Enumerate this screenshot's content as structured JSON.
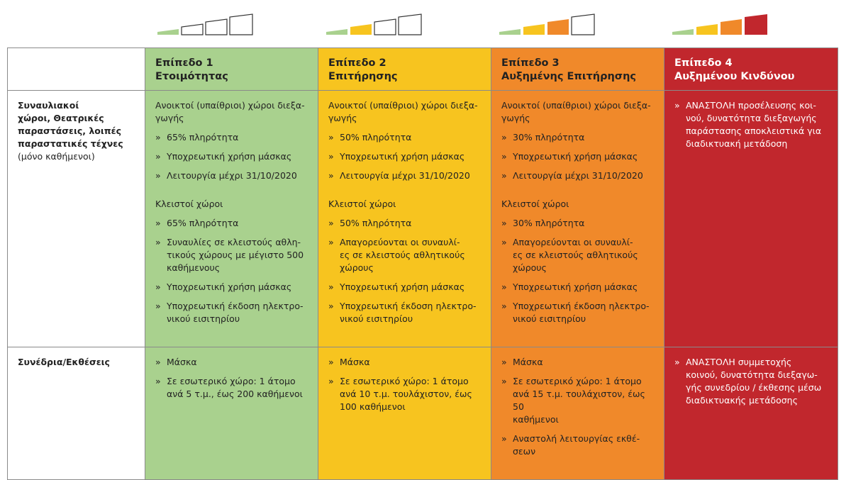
{
  "header": {
    "columns": [
      {
        "level": "Επίπεδο 1",
        "name": "Ετοιμότητας"
      },
      {
        "level": "Επίπεδο 2",
        "name": "Επιτήρησης"
      },
      {
        "level": "Επίπεδο 3",
        "name": "Αυξημένης Επιτήρησης"
      },
      {
        "level": "Επίπεδο 4",
        "name": "Αυξημένου Κινδύνου"
      }
    ]
  },
  "rows": [
    {
      "label": "Συναυλιακοί\nχώροι, Θεατρικές\nπαραστάσεις, λοιπές\nπαραστατικές τέχνες",
      "note": "(μόνο καθήμενοι)",
      "cells": [
        {
          "sections": [
            {
              "heading": "Ανοικτοί (υπαίθριοι) χώροι διεξα-\nγωγής",
              "items": [
                {
                  "bullet": "»",
                  "text": "65% πληρότητα"
                },
                {
                  "bullet": "»",
                  "text": "Υποχρεωτική χρήση μάσκας"
                },
                {
                  "bullet": "»",
                  "text": "Λειτουργία μέχρι 31/10/2020"
                }
              ]
            },
            {
              "heading": "Κλειστοί χώροι",
              "items": [
                {
                  "bullet": "»",
                  "text": "65% πληρότητα"
                },
                {
                  "bullet": "»",
                  "text": "Συναυλίες σε κλειστούς αθλη-\nτικούς χώρους με μέγιστο 500\nκαθήμενους"
                },
                {
                  "bullet": "»",
                  "text": "Υποχρεωτική χρήση μάσκας"
                },
                {
                  "bullet": "»",
                  "text": "Υποχρεωτική έκδοση ηλεκτρο-\nνικού εισιτηρίου"
                }
              ]
            }
          ]
        },
        {
          "sections": [
            {
              "heading": "Ανοικτοί (υπαίθριοι) χώροι διεξα-\nγωγής",
              "items": [
                {
                  "bullet": "»",
                  "text": "50% πληρότητα"
                },
                {
                  "bullet": "»",
                  "text": "Υποχρεωτική χρήση μάσκας"
                },
                {
                  "bullet": "»",
                  "text": "Λειτουργία μέχρι 31/10/2020"
                }
              ]
            },
            {
              "heading": "Κλειστοί χώροι",
              "items": [
                {
                  "bullet": "»",
                  "text": "50% πληρότητα"
                },
                {
                  "bullet": "»",
                  "text": "Απαγορεύονται οι συναυλί-\nες σε κλειστούς αθλητικούς\nχώρους"
                },
                {
                  "bullet": "»",
                  "text": "Υποχρεωτική χρήση μάσκας"
                },
                {
                  "bullet": "»",
                  "text": "Υποχρεωτική έκδοση ηλεκτρο-\nνικού εισιτηρίου"
                }
              ]
            }
          ]
        },
        {
          "sections": [
            {
              "heading": "Ανοικτοί (υπαίθριοι) χώροι διεξα-\nγωγής",
              "items": [
                {
                  "bullet": "»",
                  "text": "30% πληρότητα"
                },
                {
                  "bullet": "»",
                  "text": "Υποχρεωτική χρήση μάσκας"
                },
                {
                  "bullet": "»",
                  "text": "Λειτουργία μέχρι 31/10/2020"
                }
              ]
            },
            {
              "heading": "Κλειστοί χώροι",
              "items": [
                {
                  "bullet": "»",
                  "text": "30% πληρότητα"
                },
                {
                  "bullet": "»",
                  "text": "Απαγορεύονται οι συναυλί-\nες σε κλειστούς αθλητικούς\nχώρους"
                },
                {
                  "bullet": "»",
                  "text": "Υποχρεωτική χρήση μάσκας"
                },
                {
                  "bullet": "»",
                  "text": "Υποχρεωτική έκδοση ηλεκτρο-\nνικού εισιτηρίου"
                }
              ]
            }
          ]
        },
        {
          "sections": [
            {
              "items": [
                {
                  "bullet": "»",
                  "text": "ΑΝΑΣΤΟΛΗ προσέλευσης κοι-\nνού, δυνατότητα διεξαγωγής\nπαράστασης αποκλειστικά για\nδιαδικτυακή μετάδοση"
                }
              ]
            }
          ]
        }
      ]
    },
    {
      "label": "Συνέδρια/Εκθέσεις",
      "cells": [
        {
          "sections": [
            {
              "items": [
                {
                  "bullet": "»",
                  "text": "Μάσκα"
                },
                {
                  "bullet": "»",
                  "text": "Σε εσωτερικό χώρο: 1 άτομο\nανά 5 τ.μ., έως 200 καθήμενοι"
                }
              ]
            }
          ]
        },
        {
          "sections": [
            {
              "items": [
                {
                  "bullet": "»",
                  "text": "Μάσκα"
                },
                {
                  "bullet": "»",
                  "text": "Σε εσωτερικό χώρο: 1 άτομο\nανά 10 τ.μ. τουλάχιστον, έως\n100 καθήμενοι"
                }
              ]
            }
          ]
        },
        {
          "sections": [
            {
              "items": [
                {
                  "bullet": "»",
                  "text": "Μάσκα"
                },
                {
                  "bullet": "»",
                  "text": "Σε εσωτερικό χώρο: 1 άτομο\nανά 15 τ.μ. τουλάχιστον, έως 50\nκαθήμενοι"
                },
                {
                  "bullet": "»",
                  "text": "Αναστολή λειτουργίας εκθέ-\nσεων"
                }
              ]
            }
          ]
        },
        {
          "sections": [
            {
              "items": [
                {
                  "bullet": "»",
                  "text": "ΑΝΑΣΤΟΛΗ συμμετοχής\nκοινού, δυνατότητα διεξαγω-\nγής συνεδρίου / έκθεσης μέσω\nδιαδικτυακής μετάδοσης"
                }
              ]
            }
          ]
        }
      ]
    }
  ]
}
